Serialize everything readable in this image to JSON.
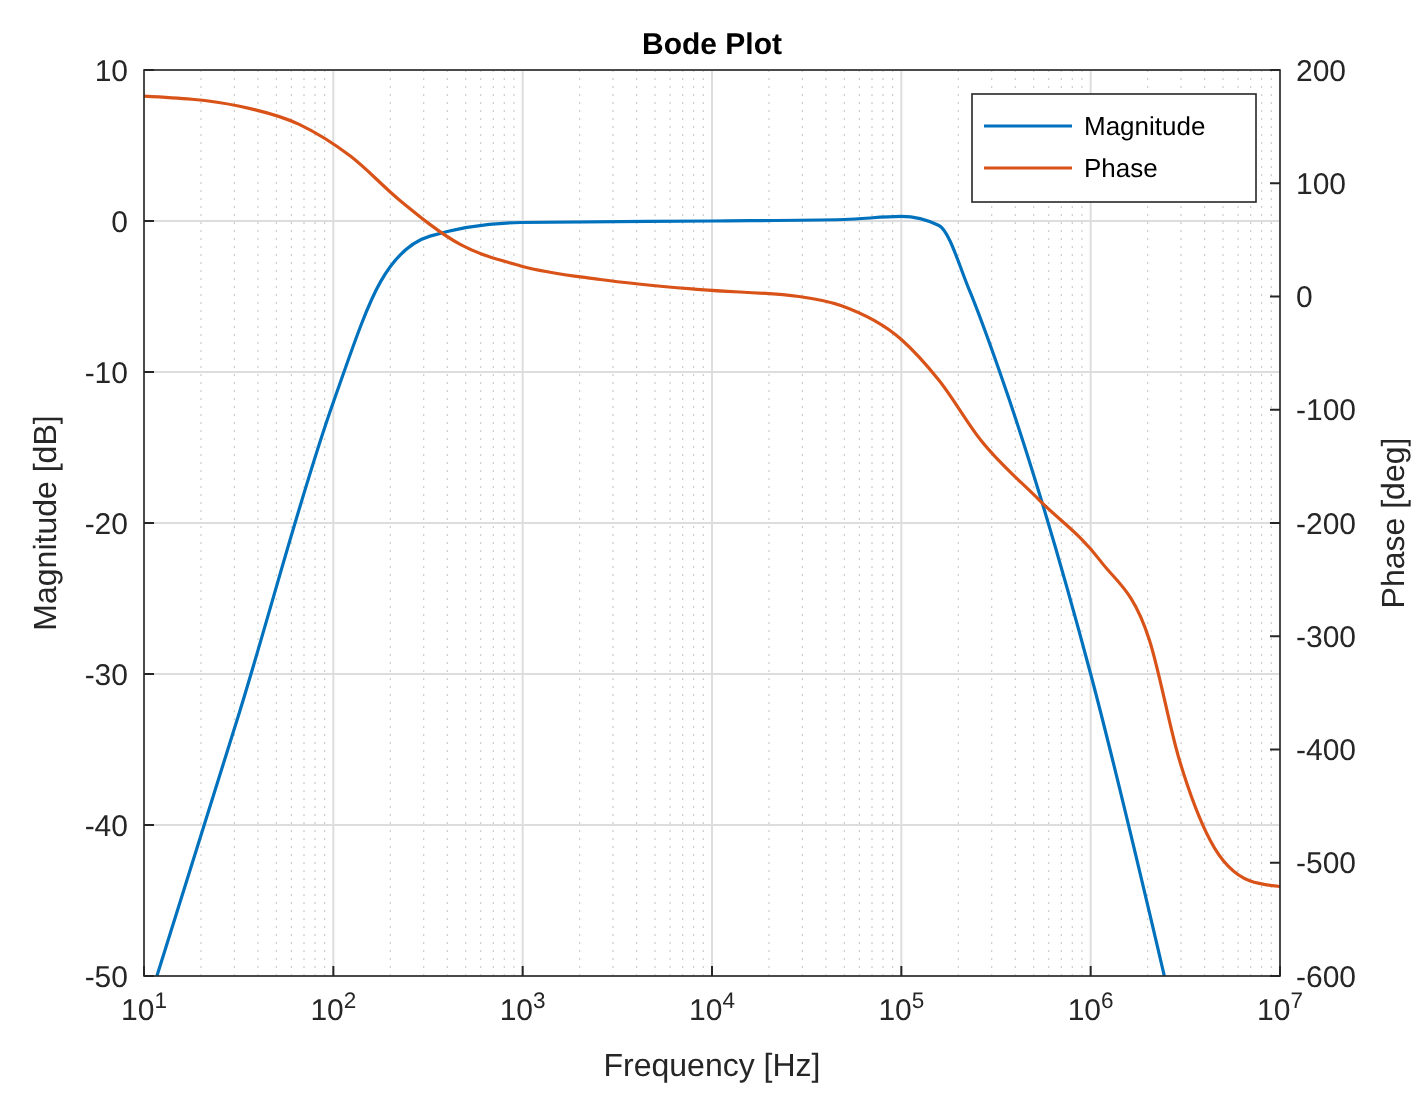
{
  "chart_data": {
    "type": "line",
    "title": "Bode Plot",
    "xlabel": "Frequency [Hz]",
    "ylabel": "Magnitude [dB]",
    "y2label": "Phase [deg]",
    "log": "x",
    "grid": true,
    "legend": "top right",
    "xlim": [
      10,
      10000000
    ],
    "xticks": [
      {
        "value": 10,
        "label": "10$^{1}$"
      },
      {
        "value": 100,
        "label": "10$^{2}$"
      },
      {
        "value": 1000,
        "label": "10$^{3}$"
      },
      {
        "value": 10000,
        "label": "10$^{4}$"
      },
      {
        "value": 100000,
        "label": "10$^{5}$"
      },
      {
        "value": 1000000,
        "label": "10$^{6}$"
      },
      {
        "value": 10000000,
        "label": "10$^{7}$"
      }
    ],
    "ylim": [
      -50,
      10
    ],
    "yticks": [
      -50,
      -40,
      -30,
      -20,
      -10,
      0,
      10
    ],
    "y2lim": [
      -600,
      200
    ],
    "y2ticks": [
      -600,
      -500,
      -400,
      -300,
      -200,
      -100,
      0,
      100,
      200
    ],
    "series": [
      {
        "name": "Magnitude",
        "color": "#0072bd",
        "x": [
          11.7,
          32,
          100,
          178,
          324,
          977,
          10000,
          50000,
          100000,
          158000,
          229000,
          331000,
          1000000,
          2450000
        ],
        "values": [
          -50,
          -32.5,
          -12,
          -4,
          -1,
          -0.1,
          0,
          0.1,
          0.3,
          -0.3,
          -4.6,
          -10,
          -30,
          -50
        ]
      },
      {
        "name": "Phase",
        "color": "#d95319",
        "axis": "y2",
        "x": [
          10,
          32,
          66,
          123,
          224,
          468,
          977,
          2570,
          8710,
          28800,
          47900,
          100000,
          158000,
          263000,
          537000,
          1120000,
          2040000,
          2950000,
          4270000,
          6920000,
          10000000
        ],
        "values": [
          177,
          168,
          152,
          124,
          85,
          46,
          27,
          15,
          6,
          0,
          -8,
          -38,
          -74,
          -127,
          -180,
          -233,
          -303,
          -410,
          -480,
          -516,
          -521
        ]
      }
    ]
  }
}
